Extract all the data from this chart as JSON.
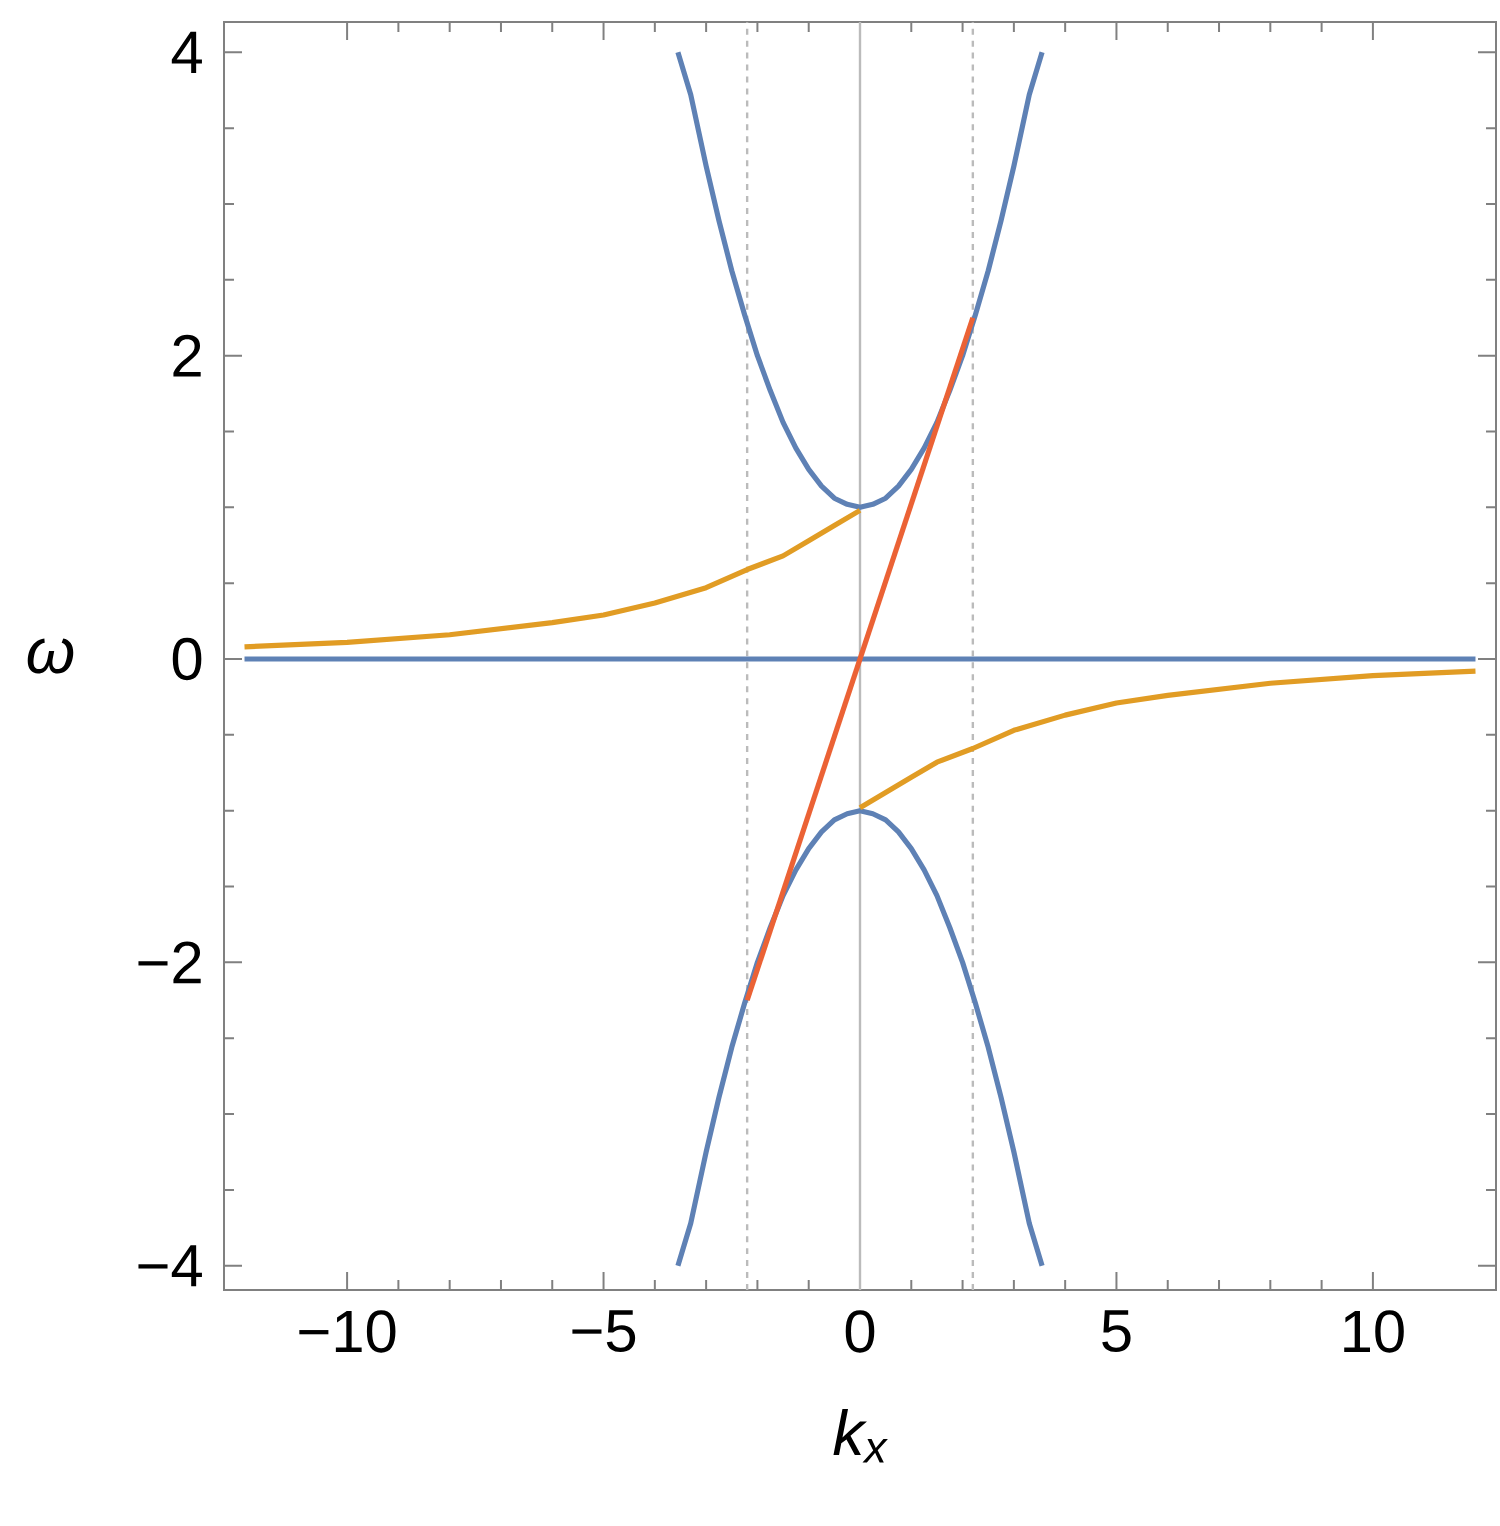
{
  "chart_data": {
    "type": "line",
    "xlabel": "k$_{x}$",
    "ylabel": "ω",
    "xlim": [
      -12.4,
      12.4
    ],
    "ylim": [
      -4.16,
      4.2
    ],
    "xticks": [
      {
        "value": -10,
        "label": "−10"
      },
      {
        "value": -5,
        "label": "−5"
      },
      0,
      5,
      10
    ],
    "yticks": [
      {
        "value": -4,
        "label": "−4"
      },
      {
        "value": -2,
        "label": "−2"
      },
      0,
      2,
      4
    ],
    "grid": false,
    "marker": "none",
    "line_style": "solid",
    "series": [
      {
        "color": "#5e81b5",
        "x": [
          -3.55,
          -3.3,
          -3,
          -2.75,
          -2.5,
          -2.25,
          -2,
          -1.75,
          -1.5,
          -1.25,
          -1,
          -0.75,
          -0.5,
          -0.25,
          0,
          0.25,
          0.5,
          0.75,
          1,
          1.25,
          1.5,
          1.75,
          2,
          2.25,
          2.5,
          2.75,
          3,
          3.3,
          3.55
        ],
        "values": [
          4,
          3.72,
          3.25,
          2.89,
          2.56,
          2.27,
          2,
          1.77,
          1.56,
          1.39,
          1.25,
          1.14,
          1.06,
          1.02,
          1,
          1.02,
          1.06,
          1.14,
          1.25,
          1.39,
          1.56,
          1.77,
          2,
          2.27,
          2.56,
          2.89,
          3.25,
          3.72,
          4
        ]
      },
      {
        "color": "#5e81b5",
        "x": [
          -3.55,
          -3.3,
          -3,
          -2.75,
          -2.5,
          -2.25,
          -2,
          -1.75,
          -1.5,
          -1.25,
          -1,
          -0.75,
          -0.5,
          -0.25,
          0,
          0.25,
          0.5,
          0.75,
          1,
          1.25,
          1.5,
          1.75,
          2,
          2.25,
          2.5,
          2.75,
          3,
          3.3,
          3.55
        ],
        "values": [
          -4,
          -3.72,
          -3.25,
          -2.89,
          -2.56,
          -2.27,
          -2,
          -1.77,
          -1.56,
          -1.39,
          -1.25,
          -1.14,
          -1.06,
          -1.02,
          -1,
          -1.02,
          -1.06,
          -1.14,
          -1.25,
          -1.39,
          -1.56,
          -1.77,
          -2,
          -2.27,
          -2.56,
          -2.89,
          -3.25,
          -3.72,
          -4
        ]
      },
      {
        "color": "#5e81b5",
        "x": [
          -12,
          12
        ],
        "values": [
          0,
          0
        ]
      },
      {
        "color": "#e19c24",
        "x": [
          -12,
          -10,
          -8,
          -6,
          -5,
          -4,
          -3,
          -2.2,
          -1.5,
          -1,
          -0.5,
          0
        ],
        "values": [
          0.08,
          0.11,
          0.16,
          0.24,
          0.29,
          0.37,
          0.47,
          0.59,
          0.68,
          0.78,
          0.88,
          0.98
        ]
      },
      {
        "color": "#e19c24",
        "x": [
          0,
          0.5,
          1,
          1.5,
          2.2,
          3,
          4,
          5,
          6,
          8,
          10,
          12
        ],
        "values": [
          -0.98,
          -0.88,
          -0.78,
          -0.68,
          -0.59,
          -0.47,
          -0.37,
          -0.29,
          -0.24,
          -0.16,
          -0.11,
          -0.08
        ]
      },
      {
        "color": "#eb6235",
        "x": [
          -2.2,
          2.2
        ],
        "values": [
          -2.25,
          2.25
        ]
      }
    ],
    "ref_lines": [
      {
        "axis": "x",
        "value": 0,
        "color": "#bbbbbb",
        "line_style": "solid"
      },
      {
        "axis": "x",
        "value": -2.2,
        "color": "#bbbbbb",
        "line_style": "dashed"
      },
      {
        "axis": "x",
        "value": 2.2,
        "color": "#bbbbbb",
        "line_style": "dashed"
      }
    ]
  }
}
